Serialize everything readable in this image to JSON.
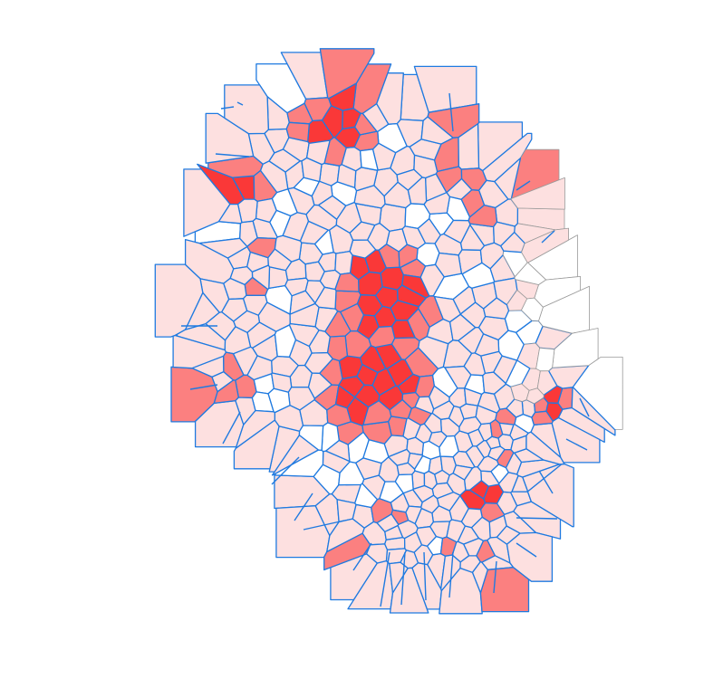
{
  "figure": {
    "type": "voronoi-heat-map",
    "title": "",
    "background": "#ffffff",
    "edge_colors": {
      "primary": "#1f7ae0",
      "secondary": "#9a9a9a"
    },
    "fill_levels": [
      {
        "level": 0,
        "color": "#ffffff"
      },
      {
        "level": 1,
        "color": "#fde0e0"
      },
      {
        "level": 2,
        "color": "#fb8080"
      },
      {
        "level": 3,
        "color": "#fa3838"
      }
    ],
    "hotspots": [
      {
        "name": "north-cluster",
        "intensity": 0.95
      },
      {
        "name": "central-cluster",
        "intensity": 1.0
      },
      {
        "name": "south-central-cluster",
        "intensity": 0.95
      },
      {
        "name": "south-east-cluster",
        "intensity": 0.85
      },
      {
        "name": "north-west-cluster",
        "intensity": 0.8
      },
      {
        "name": "east-cluster",
        "intensity": 0.7
      }
    ]
  }
}
